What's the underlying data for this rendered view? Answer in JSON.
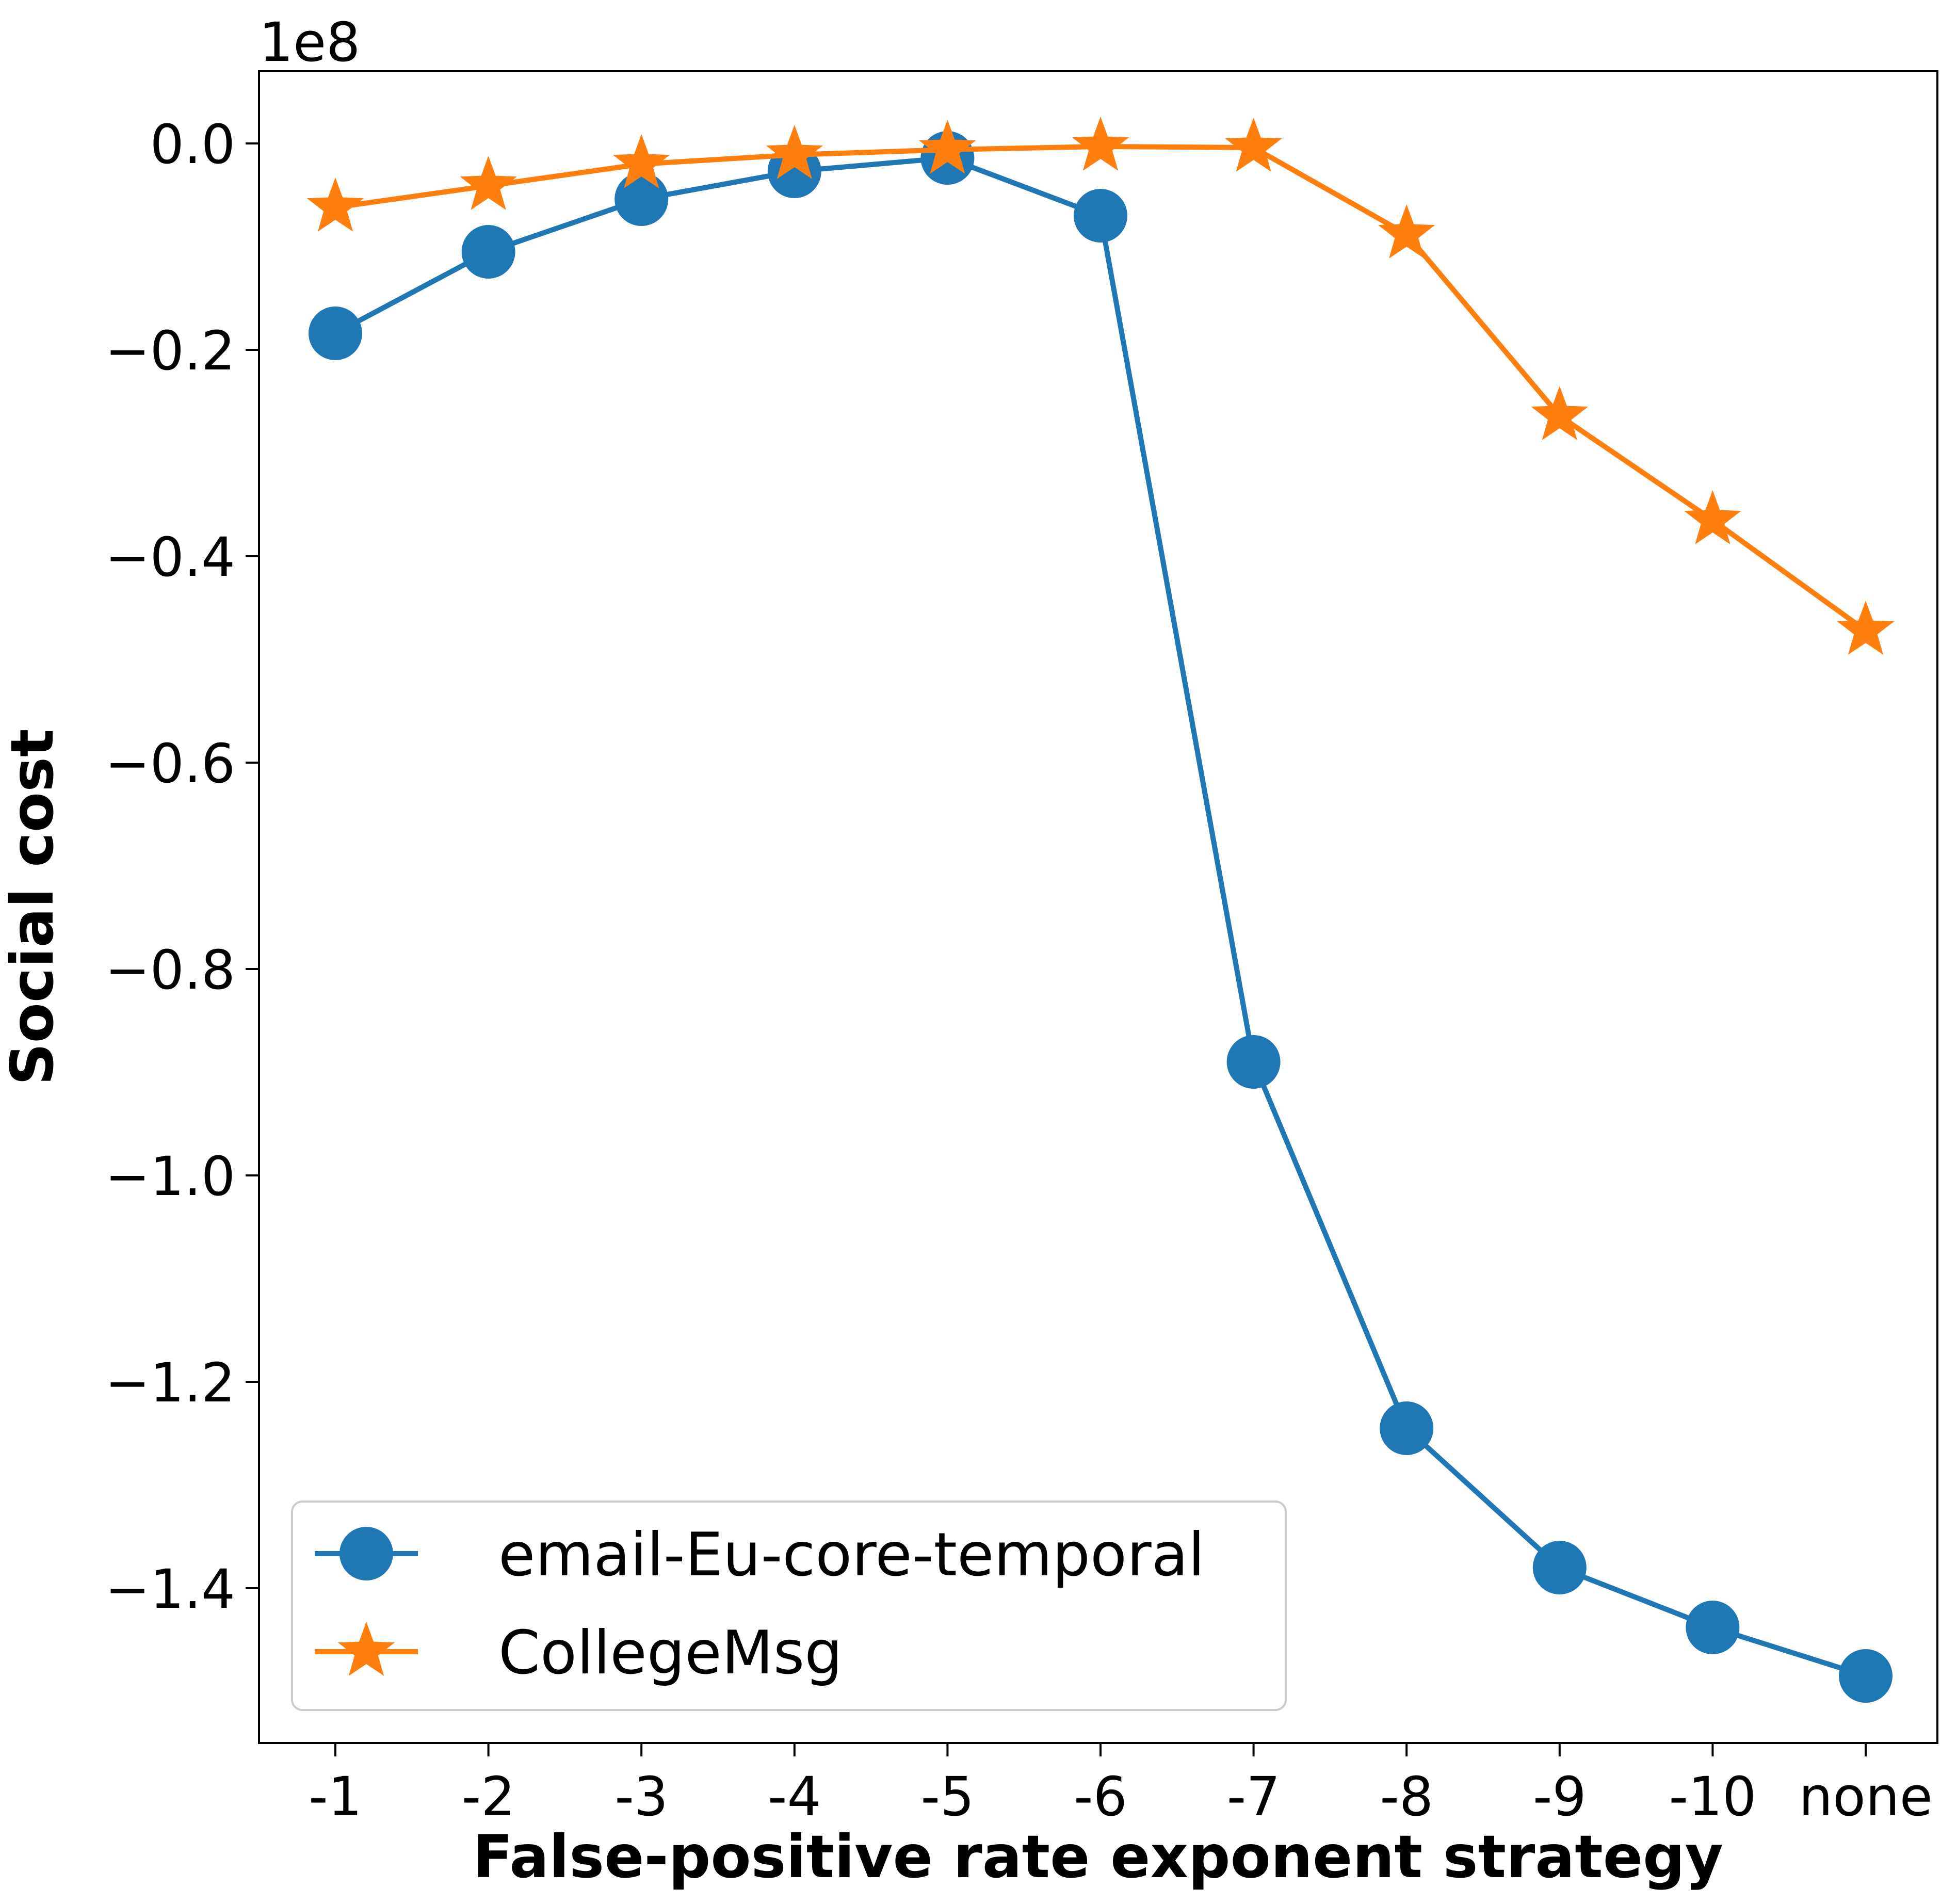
{
  "chart_data": {
    "type": "line",
    "title": "",
    "xlabel": "False-positive rate exponent strategy",
    "ylabel": "Social cost",
    "y_offset_text": "1e8",
    "categories": [
      "-1",
      "-2",
      "-3",
      "-4",
      "-5",
      "-6",
      "-7",
      "-8",
      "-9",
      "-10",
      "none"
    ],
    "yticks": [
      0.0,
      -0.2,
      -0.4,
      -0.6,
      -0.8,
      -1.0,
      -1.2,
      -1.4
    ],
    "ytick_labels": [
      "0.0",
      "−0.2",
      "−0.4",
      "−0.6",
      "−0.8",
      "−1.0",
      "−1.2",
      "−1.4"
    ],
    "ylim": [
      -1.55,
      0.07
    ],
    "y_scale_factor": 100000000,
    "grid": false,
    "legend_position": "lower-left",
    "series": [
      {
        "name": "email-Eu-core-temporal",
        "color": "#1f77b4",
        "marker": "circle",
        "values": [
          -0.184,
          -0.105,
          -0.054,
          -0.027,
          -0.014,
          -0.07,
          -0.89,
          -1.245,
          -1.38,
          -1.438,
          -1.485
        ]
      },
      {
        "name": "CollegeMsg",
        "color": "#ff7f0e",
        "marker": "star",
        "values": [
          -0.062,
          -0.041,
          -0.02,
          -0.011,
          -0.006,
          -0.003,
          -0.004,
          -0.088,
          -0.264,
          -0.365,
          -0.472
        ]
      }
    ]
  }
}
